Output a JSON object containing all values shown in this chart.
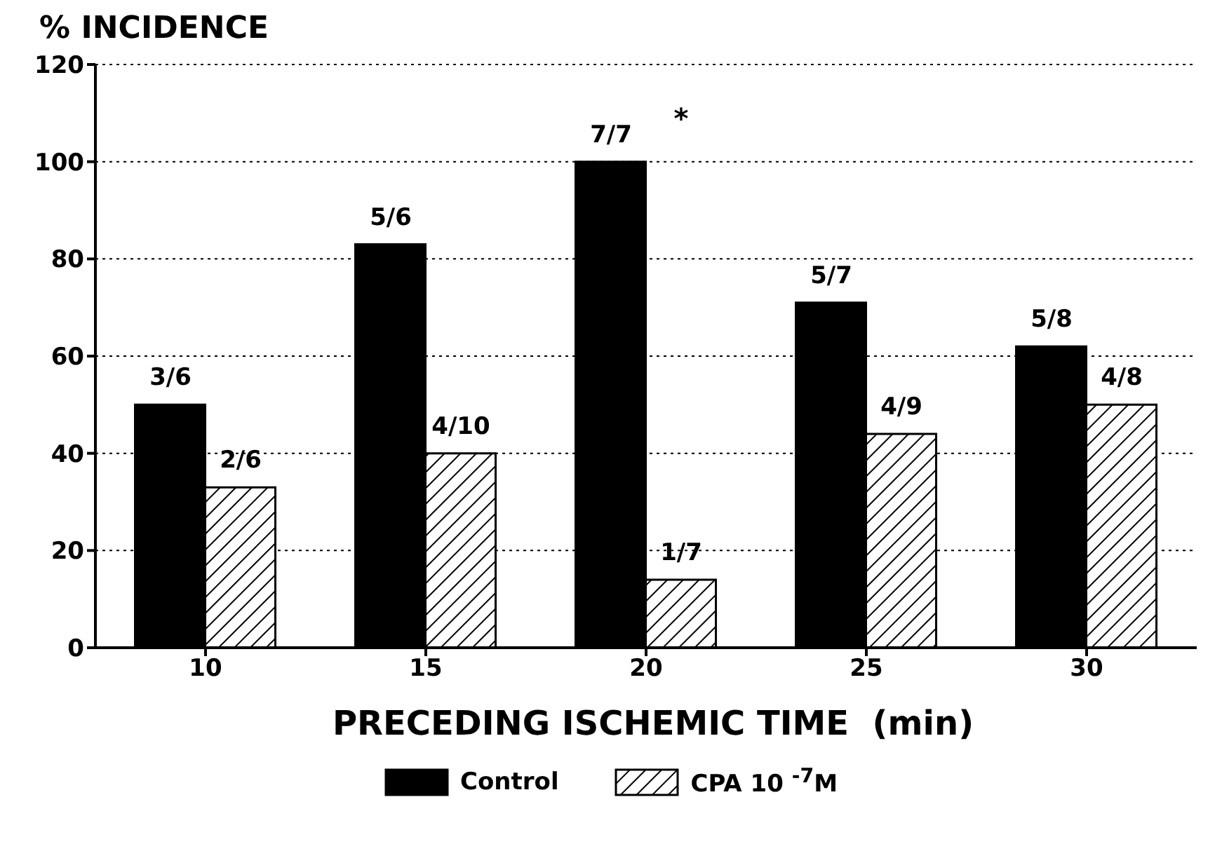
{
  "chart_data": {
    "type": "bar",
    "ylabel": "% INCIDENCE",
    "xlabel": "PRECEDING ISCHEMIC TIME  (min)",
    "categories": [
      "10",
      "15",
      "20",
      "25",
      "30"
    ],
    "series": [
      {
        "name": "Control",
        "color": "#000000",
        "values": [
          50,
          83,
          100,
          71,
          62
        ]
      },
      {
        "name": "CPA 10 $^{-7}$M",
        "color": "#000000",
        "values": [
          33,
          40,
          14,
          44,
          50
        ]
      }
    ],
    "ylim": [
      0,
      120
    ],
    "yticks": [
      0,
      20,
      40,
      60,
      80,
      100,
      120
    ],
    "grid": "y",
    "legend": "bottom",
    "annotations": [
      {
        "text": "3/6",
        "x": "10",
        "y": 50
      },
      {
        "text": "5/6",
        "x": "15",
        "y": 83
      },
      {
        "text": "7/7",
        "x": "20",
        "y": 100
      },
      {
        "text": "5/7",
        "x": "25",
        "y": 71
      },
      {
        "text": "5/8",
        "x": "30",
        "y": 62
      },
      {
        "text": "2/6",
        "x": "10",
        "y": 33
      },
      {
        "text": "4/10",
        "x": "15",
        "y": 40
      },
      {
        "text": "1/7",
        "x": "20",
        "y": 14
      },
      {
        "text": "4/9",
        "x": "25",
        "y": 44
      },
      {
        "text": "4/8",
        "x": "30",
        "y": 50
      },
      {
        "text": "*",
        "x": "20",
        "y": 100
      }
    ]
  }
}
